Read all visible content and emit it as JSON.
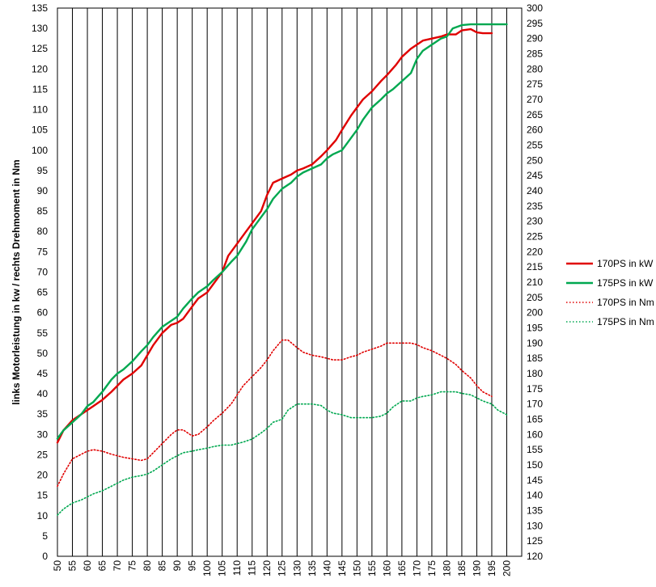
{
  "chart_data": {
    "type": "line",
    "xlabel": "",
    "ylabel": "links Motorleistung in kw / rechts Drehmoment in Nm",
    "x_ticks": [
      50,
      55,
      60,
      65,
      70,
      75,
      80,
      85,
      90,
      95,
      100,
      105,
      110,
      115,
      120,
      125,
      130,
      135,
      140,
      145,
      150,
      155,
      160,
      165,
      170,
      175,
      180,
      185,
      190,
      195,
      200
    ],
    "xlim": [
      50,
      200
    ],
    "y_left": {
      "min": 0,
      "max": 135,
      "step": 5
    },
    "y_right": {
      "min": 120,
      "max": 300,
      "step": 5
    },
    "grid": {
      "vertical": true,
      "horizontal": false
    },
    "legend_position": "right",
    "series": [
      {
        "name": "170PS in kW",
        "axis": "left",
        "color": "#e00000",
        "style": "solid",
        "x": [
          50,
          52,
          55,
          58,
          60,
          62,
          65,
          68,
          70,
          72,
          75,
          78,
          80,
          82,
          85,
          88,
          90,
          92,
          95,
          97,
          100,
          102,
          105,
          107,
          110,
          113,
          115,
          118,
          120,
          122,
          125,
          128,
          130,
          132,
          135,
          138,
          140,
          143,
          145,
          148,
          150,
          152,
          155,
          158,
          160,
          163,
          165,
          168,
          170,
          172,
          175,
          178,
          180,
          183,
          185,
          188,
          190,
          192,
          193,
          195
        ],
        "y": [
          28,
          31,
          33.5,
          35,
          36,
          37,
          38.5,
          40.5,
          42,
          43.5,
          45,
          47,
          49.5,
          52,
          55,
          57,
          57.5,
          58.5,
          61.5,
          63.5,
          65,
          67,
          70,
          74,
          77,
          80,
          82,
          85,
          89,
          92,
          93,
          94,
          95,
          95.5,
          96.5,
          98.5,
          100,
          102.5,
          105,
          108.5,
          110.5,
          112.5,
          114.5,
          117,
          118.5,
          121,
          123,
          125,
          126,
          127,
          127.5,
          128,
          128.5,
          128.5,
          129.5,
          129.8,
          129,
          128.8,
          128.8,
          128.8
        ]
      },
      {
        "name": "175PS in kW",
        "axis": "left",
        "color": "#00a850",
        "style": "solid",
        "x": [
          50,
          52,
          55,
          58,
          60,
          62,
          65,
          68,
          70,
          72,
          75,
          78,
          80,
          82,
          85,
          88,
          90,
          92,
          95,
          97,
          100,
          102,
          105,
          108,
          110,
          113,
          115,
          118,
          120,
          122,
          125,
          128,
          130,
          132,
          135,
          138,
          140,
          142,
          145,
          148,
          150,
          152,
          155,
          158,
          160,
          162,
          165,
          168,
          170,
          172,
          175,
          178,
          180,
          182,
          185,
          188,
          190,
          192,
          195,
          197,
          200
        ],
        "y": [
          29,
          31,
          33,
          35,
          37,
          38,
          40.5,
          43.5,
          45,
          46,
          48,
          50.5,
          52,
          54,
          56.5,
          58,
          59,
          61,
          63.5,
          65,
          66.5,
          68,
          70,
          72.5,
          74,
          77.5,
          80.5,
          83.5,
          85.5,
          88,
          90.5,
          92,
          93.5,
          94.5,
          95.5,
          96.5,
          98,
          99,
          100,
          103,
          105,
          107.5,
          110.5,
          112.5,
          114,
          115,
          117,
          119,
          122.5,
          124.5,
          126,
          127.5,
          128,
          130,
          130.8,
          131,
          131,
          131,
          131,
          131,
          131
        ]
      },
      {
        "name": "170PS in Nm",
        "axis": "right",
        "color": "#e00000",
        "style": "dotted",
        "x": [
          50,
          52,
          55,
          58,
          60,
          62,
          65,
          68,
          70,
          72,
          75,
          78,
          80,
          82,
          85,
          88,
          90,
          92,
          95,
          97,
          100,
          102,
          105,
          108,
          110,
          112,
          115,
          118,
          120,
          122,
          125,
          127,
          130,
          132,
          135,
          138,
          140,
          142,
          145,
          148,
          150,
          152,
          155,
          158,
          160,
          162,
          165,
          168,
          170,
          172,
          175,
          178,
          180,
          183,
          185,
          188,
          190,
          192,
          195
        ],
        "y": [
          143,
          147,
          152,
          153.5,
          154.5,
          155,
          154.5,
          153.5,
          153,
          152.5,
          152,
          151.5,
          152,
          154,
          157,
          160,
          161.5,
          161.5,
          159.5,
          160,
          162.5,
          164.5,
          167,
          170,
          173,
          176,
          179,
          182,
          184.5,
          187.5,
          191,
          191,
          188.5,
          187,
          186,
          185.5,
          185,
          184.5,
          184.5,
          185.5,
          186,
          187,
          188,
          189,
          190,
          190,
          190,
          190,
          189.5,
          188.5,
          187.5,
          186,
          185,
          183,
          181,
          178.5,
          176,
          174,
          172.5
        ]
      },
      {
        "name": "175PS in Nm",
        "axis": "right",
        "color": "#00a850",
        "style": "dotted",
        "x": [
          50,
          52,
          55,
          58,
          60,
          62,
          65,
          68,
          70,
          72,
          75,
          78,
          80,
          82,
          85,
          88,
          90,
          92,
          95,
          97,
          100,
          102,
          105,
          108,
          110,
          112,
          115,
          118,
          120,
          122,
          125,
          127,
          130,
          132,
          135,
          138,
          140,
          142,
          145,
          148,
          150,
          152,
          155,
          158,
          160,
          162,
          165,
          168,
          170,
          172,
          175,
          178,
          180,
          183,
          185,
          188,
          190,
          192,
          195,
          197,
          200
        ],
        "y": [
          133.5,
          135.5,
          137.5,
          138.5,
          139.5,
          140.5,
          141.5,
          143,
          144,
          145,
          146,
          146.5,
          147,
          148,
          150,
          152,
          153,
          154,
          154.5,
          155,
          155.5,
          156,
          156.5,
          156.5,
          157,
          157.5,
          158.5,
          160.5,
          162,
          164,
          165,
          168,
          170,
          170,
          170,
          169.5,
          168,
          167,
          166.5,
          165.5,
          165.5,
          165.5,
          165.5,
          166,
          167,
          169,
          171,
          171,
          172,
          172.5,
          173,
          174,
          174,
          174,
          173.5,
          173,
          172,
          171,
          170,
          168,
          166.5
        ]
      }
    ]
  }
}
